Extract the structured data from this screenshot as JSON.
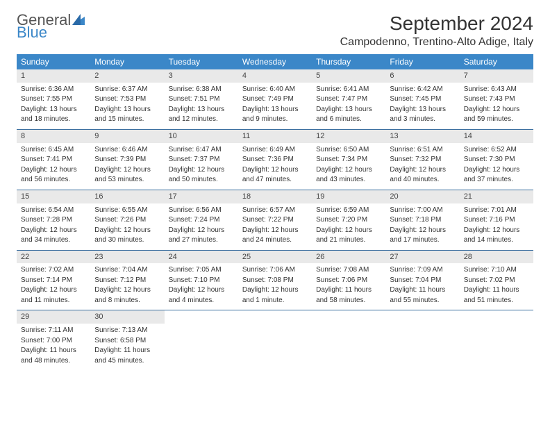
{
  "logo": {
    "part1": "General",
    "part2": "Blue"
  },
  "title": "September 2024",
  "location": "Campodenno, Trentino-Alto Adige, Italy",
  "colors": {
    "header_bg": "#3b87c8",
    "daynum_bg": "#e9e9e9",
    "week_border": "#3b6fa0",
    "text": "#333333",
    "logo_gray": "#555555"
  },
  "dayNames": [
    "Sunday",
    "Monday",
    "Tuesday",
    "Wednesday",
    "Thursday",
    "Friday",
    "Saturday"
  ],
  "weeks": [
    [
      {
        "n": "1",
        "sr": "Sunrise: 6:36 AM",
        "ss": "Sunset: 7:55 PM",
        "d1": "Daylight: 13 hours",
        "d2": "and 18 minutes."
      },
      {
        "n": "2",
        "sr": "Sunrise: 6:37 AM",
        "ss": "Sunset: 7:53 PM",
        "d1": "Daylight: 13 hours",
        "d2": "and 15 minutes."
      },
      {
        "n": "3",
        "sr": "Sunrise: 6:38 AM",
        "ss": "Sunset: 7:51 PM",
        "d1": "Daylight: 13 hours",
        "d2": "and 12 minutes."
      },
      {
        "n": "4",
        "sr": "Sunrise: 6:40 AM",
        "ss": "Sunset: 7:49 PM",
        "d1": "Daylight: 13 hours",
        "d2": "and 9 minutes."
      },
      {
        "n": "5",
        "sr": "Sunrise: 6:41 AM",
        "ss": "Sunset: 7:47 PM",
        "d1": "Daylight: 13 hours",
        "d2": "and 6 minutes."
      },
      {
        "n": "6",
        "sr": "Sunrise: 6:42 AM",
        "ss": "Sunset: 7:45 PM",
        "d1": "Daylight: 13 hours",
        "d2": "and 3 minutes."
      },
      {
        "n": "7",
        "sr": "Sunrise: 6:43 AM",
        "ss": "Sunset: 7:43 PM",
        "d1": "Daylight: 12 hours",
        "d2": "and 59 minutes."
      }
    ],
    [
      {
        "n": "8",
        "sr": "Sunrise: 6:45 AM",
        "ss": "Sunset: 7:41 PM",
        "d1": "Daylight: 12 hours",
        "d2": "and 56 minutes."
      },
      {
        "n": "9",
        "sr": "Sunrise: 6:46 AM",
        "ss": "Sunset: 7:39 PM",
        "d1": "Daylight: 12 hours",
        "d2": "and 53 minutes."
      },
      {
        "n": "10",
        "sr": "Sunrise: 6:47 AM",
        "ss": "Sunset: 7:37 PM",
        "d1": "Daylight: 12 hours",
        "d2": "and 50 minutes."
      },
      {
        "n": "11",
        "sr": "Sunrise: 6:49 AM",
        "ss": "Sunset: 7:36 PM",
        "d1": "Daylight: 12 hours",
        "d2": "and 47 minutes."
      },
      {
        "n": "12",
        "sr": "Sunrise: 6:50 AM",
        "ss": "Sunset: 7:34 PM",
        "d1": "Daylight: 12 hours",
        "d2": "and 43 minutes."
      },
      {
        "n": "13",
        "sr": "Sunrise: 6:51 AM",
        "ss": "Sunset: 7:32 PM",
        "d1": "Daylight: 12 hours",
        "d2": "and 40 minutes."
      },
      {
        "n": "14",
        "sr": "Sunrise: 6:52 AM",
        "ss": "Sunset: 7:30 PM",
        "d1": "Daylight: 12 hours",
        "d2": "and 37 minutes."
      }
    ],
    [
      {
        "n": "15",
        "sr": "Sunrise: 6:54 AM",
        "ss": "Sunset: 7:28 PM",
        "d1": "Daylight: 12 hours",
        "d2": "and 34 minutes."
      },
      {
        "n": "16",
        "sr": "Sunrise: 6:55 AM",
        "ss": "Sunset: 7:26 PM",
        "d1": "Daylight: 12 hours",
        "d2": "and 30 minutes."
      },
      {
        "n": "17",
        "sr": "Sunrise: 6:56 AM",
        "ss": "Sunset: 7:24 PM",
        "d1": "Daylight: 12 hours",
        "d2": "and 27 minutes."
      },
      {
        "n": "18",
        "sr": "Sunrise: 6:57 AM",
        "ss": "Sunset: 7:22 PM",
        "d1": "Daylight: 12 hours",
        "d2": "and 24 minutes."
      },
      {
        "n": "19",
        "sr": "Sunrise: 6:59 AM",
        "ss": "Sunset: 7:20 PM",
        "d1": "Daylight: 12 hours",
        "d2": "and 21 minutes."
      },
      {
        "n": "20",
        "sr": "Sunrise: 7:00 AM",
        "ss": "Sunset: 7:18 PM",
        "d1": "Daylight: 12 hours",
        "d2": "and 17 minutes."
      },
      {
        "n": "21",
        "sr": "Sunrise: 7:01 AM",
        "ss": "Sunset: 7:16 PM",
        "d1": "Daylight: 12 hours",
        "d2": "and 14 minutes."
      }
    ],
    [
      {
        "n": "22",
        "sr": "Sunrise: 7:02 AM",
        "ss": "Sunset: 7:14 PM",
        "d1": "Daylight: 12 hours",
        "d2": "and 11 minutes."
      },
      {
        "n": "23",
        "sr": "Sunrise: 7:04 AM",
        "ss": "Sunset: 7:12 PM",
        "d1": "Daylight: 12 hours",
        "d2": "and 8 minutes."
      },
      {
        "n": "24",
        "sr": "Sunrise: 7:05 AM",
        "ss": "Sunset: 7:10 PM",
        "d1": "Daylight: 12 hours",
        "d2": "and 4 minutes."
      },
      {
        "n": "25",
        "sr": "Sunrise: 7:06 AM",
        "ss": "Sunset: 7:08 PM",
        "d1": "Daylight: 12 hours",
        "d2": "and 1 minute."
      },
      {
        "n": "26",
        "sr": "Sunrise: 7:08 AM",
        "ss": "Sunset: 7:06 PM",
        "d1": "Daylight: 11 hours",
        "d2": "and 58 minutes."
      },
      {
        "n": "27",
        "sr": "Sunrise: 7:09 AM",
        "ss": "Sunset: 7:04 PM",
        "d1": "Daylight: 11 hours",
        "d2": "and 55 minutes."
      },
      {
        "n": "28",
        "sr": "Sunrise: 7:10 AM",
        "ss": "Sunset: 7:02 PM",
        "d1": "Daylight: 11 hours",
        "d2": "and 51 minutes."
      }
    ],
    [
      {
        "n": "29",
        "sr": "Sunrise: 7:11 AM",
        "ss": "Sunset: 7:00 PM",
        "d1": "Daylight: 11 hours",
        "d2": "and 48 minutes."
      },
      {
        "n": "30",
        "sr": "Sunrise: 7:13 AM",
        "ss": "Sunset: 6:58 PM",
        "d1": "Daylight: 11 hours",
        "d2": "and 45 minutes."
      },
      null,
      null,
      null,
      null,
      null
    ]
  ]
}
